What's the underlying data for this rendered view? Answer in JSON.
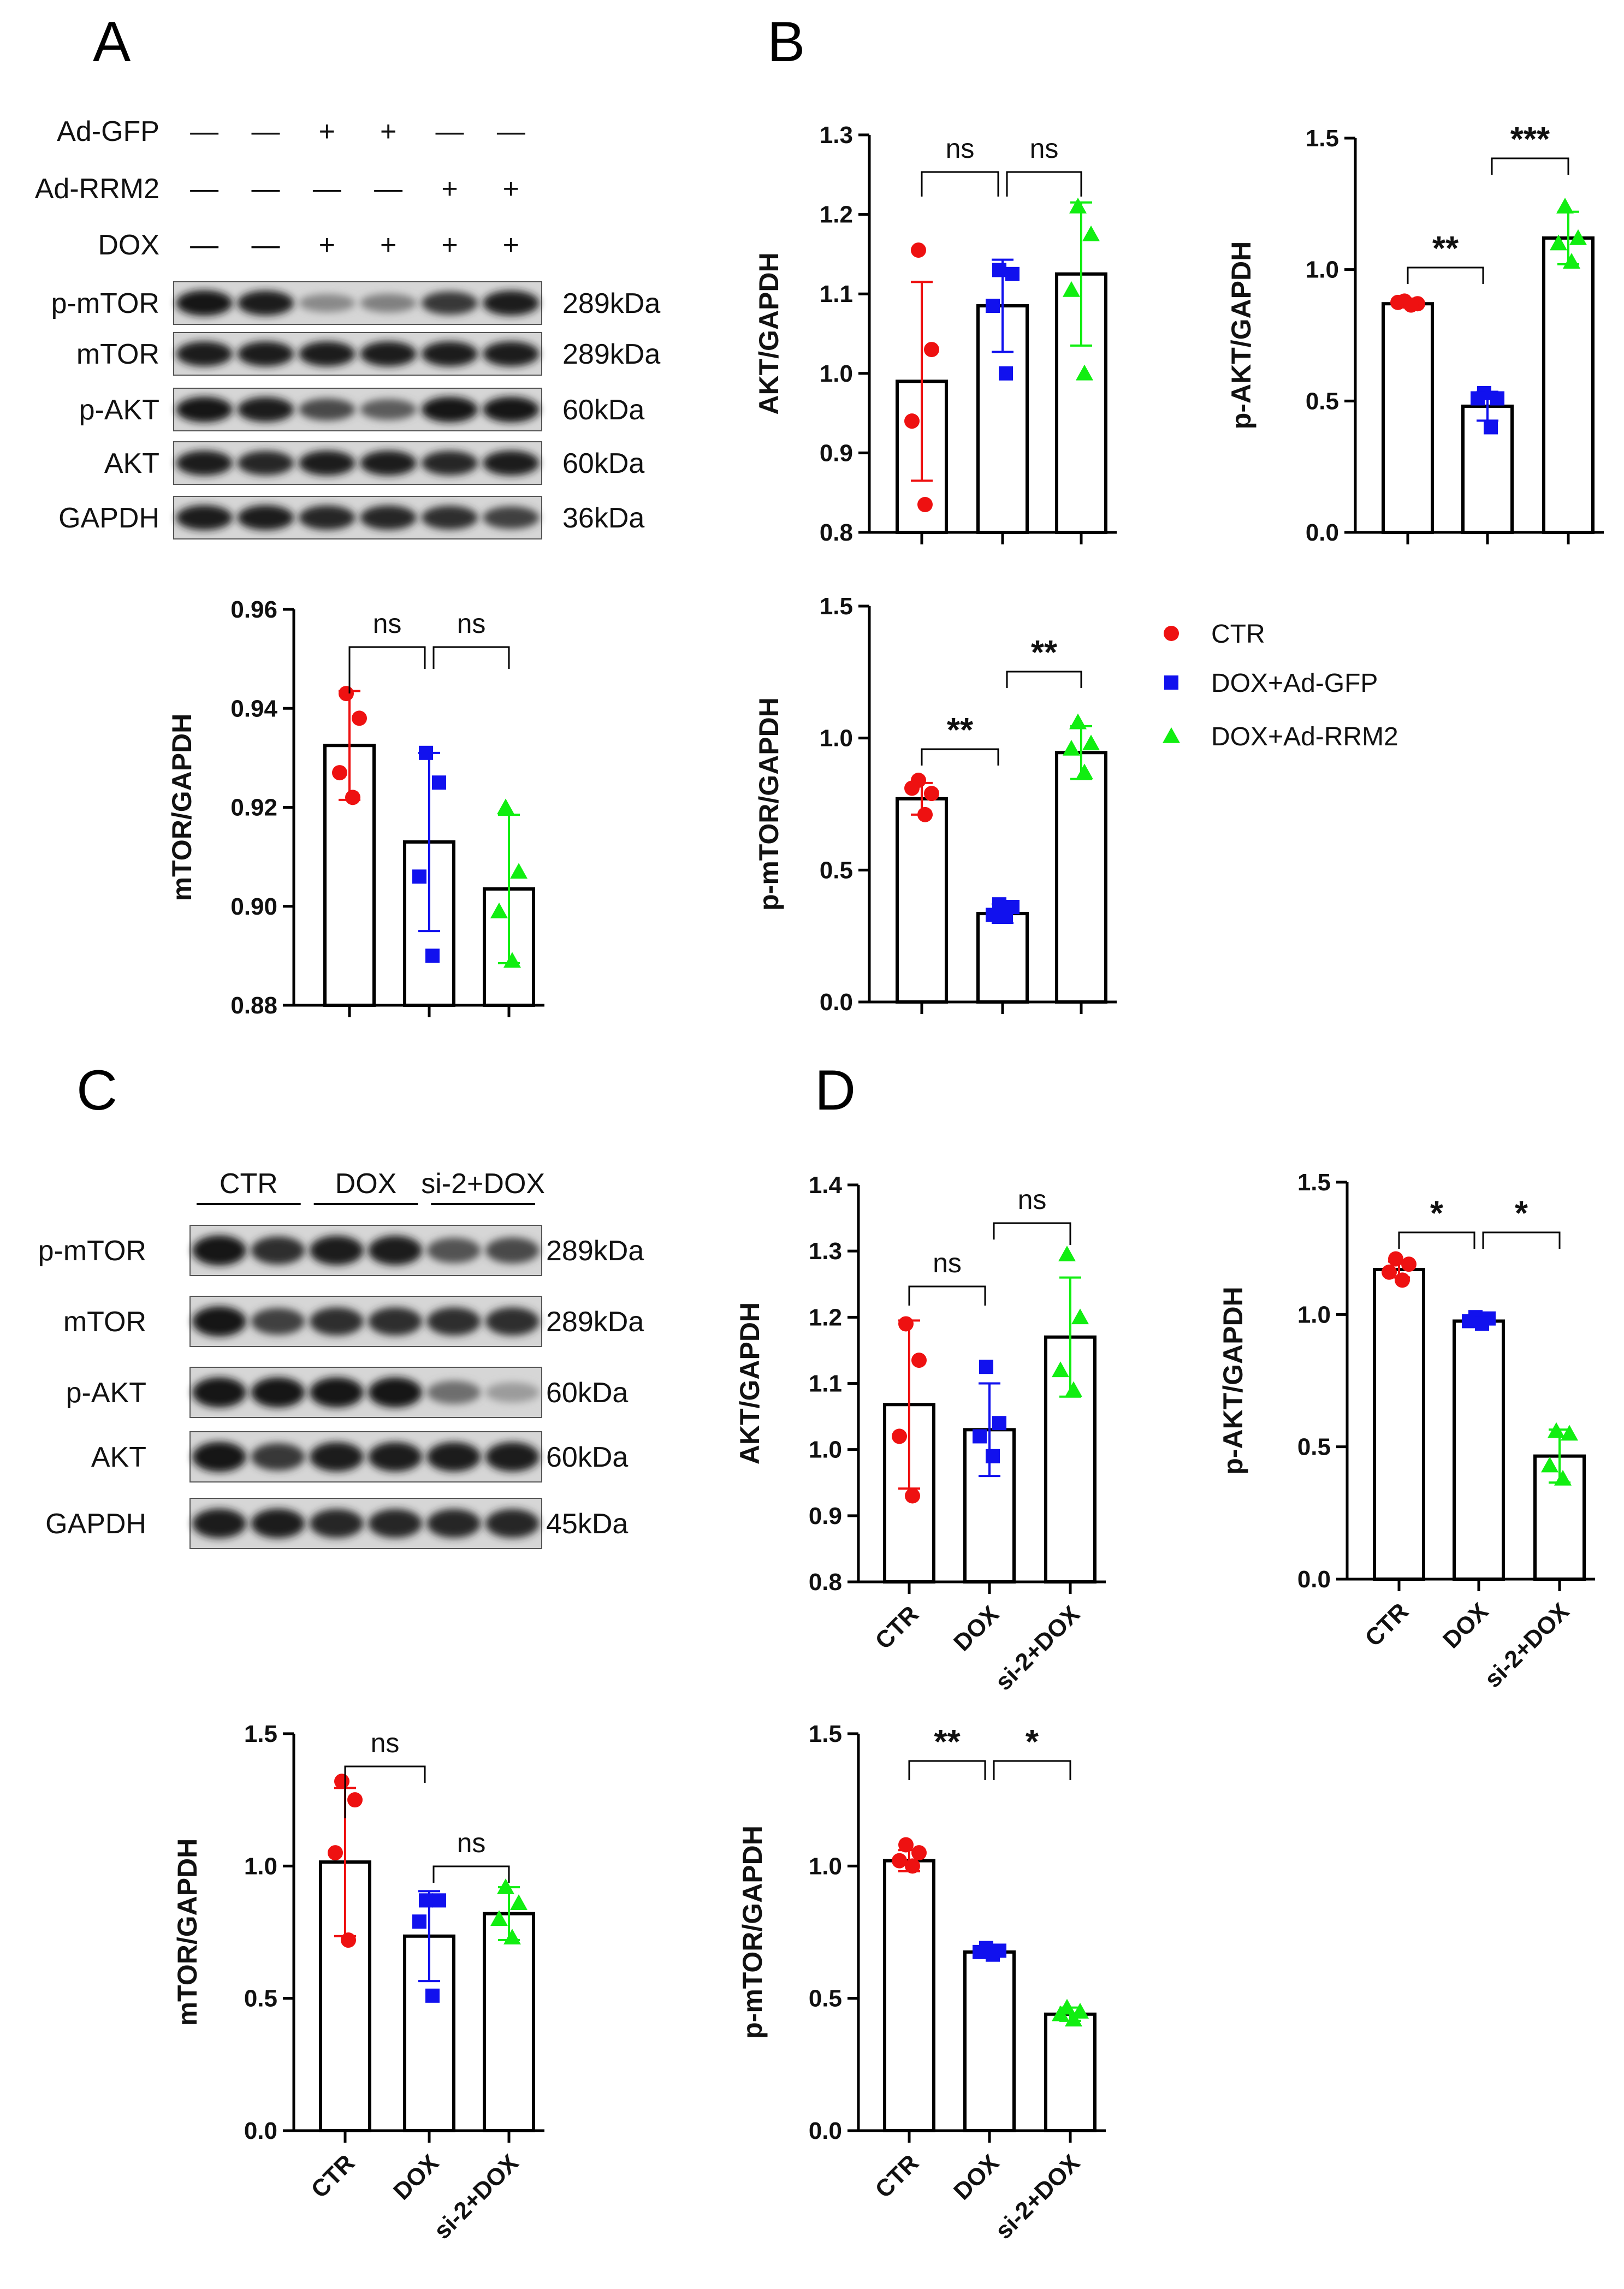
{
  "panels": {
    "A": "A",
    "B": "B",
    "C": "C",
    "D": "D"
  },
  "colors": {
    "ctr": "#ee1111",
    "gfp": "#1111ee",
    "rrm2": "#11ee11",
    "bar_fill": "#ffffff",
    "axis": "#000000"
  },
  "blot_A": {
    "treatments": [
      {
        "name": "Ad-GFP",
        "marks": [
          "—",
          "—",
          "+",
          "+",
          "—",
          "—"
        ]
      },
      {
        "name": "Ad-RRM2",
        "marks": [
          "—",
          "—",
          "—",
          "—",
          "+",
          "+"
        ]
      },
      {
        "name": "DOX",
        "marks": [
          "—",
          "—",
          "+",
          "+",
          "+",
          "+"
        ]
      }
    ],
    "rows": [
      {
        "label": "p-mTOR",
        "kda": "289kDa",
        "intensity": [
          1.0,
          0.95,
          0.35,
          0.4,
          0.8,
          0.95
        ]
      },
      {
        "label": "mTOR",
        "kda": "289kDa",
        "intensity": [
          0.95,
          0.95,
          0.95,
          0.95,
          0.95,
          0.95
        ]
      },
      {
        "label": "p-AKT",
        "kda": "60kDa",
        "intensity": [
          1.0,
          0.95,
          0.7,
          0.6,
          1.0,
          1.0
        ]
      },
      {
        "label": "AKT",
        "kda": "60kDa",
        "intensity": [
          0.95,
          0.9,
          0.95,
          0.95,
          0.9,
          0.95
        ]
      },
      {
        "label": "GAPDH",
        "kda": "36kDa",
        "intensity": [
          0.95,
          0.95,
          0.9,
          0.9,
          0.85,
          0.75
        ]
      }
    ]
  },
  "blot_C": {
    "groups": [
      "CTR",
      "DOX",
      "si-2+DOX"
    ],
    "rows": [
      {
        "label": "p-mTOR",
        "kda": "289kDa",
        "intensity": [
          1.0,
          0.85,
          0.95,
          0.95,
          0.65,
          0.7
        ]
      },
      {
        "label": "mTOR",
        "kda": "289kDa",
        "intensity": [
          1.0,
          0.75,
          0.85,
          0.85,
          0.85,
          0.85
        ]
      },
      {
        "label": "p-AKT",
        "kda": "60kDa",
        "intensity": [
          1.0,
          1.0,
          1.0,
          1.0,
          0.5,
          0.25
        ]
      },
      {
        "label": "AKT",
        "kda": "60kDa",
        "intensity": [
          1.0,
          0.8,
          0.95,
          0.95,
          0.95,
          0.95
        ]
      },
      {
        "label": "GAPDH",
        "kda": "45kDa",
        "intensity": [
          0.95,
          0.95,
          0.9,
          0.9,
          0.9,
          0.9
        ]
      }
    ]
  },
  "legend": [
    {
      "label": "CTR",
      "shape": "circle",
      "color": "#ee1111"
    },
    {
      "label": "DOX+Ad-GFP",
      "shape": "square",
      "color": "#1111ee"
    },
    {
      "label": "DOX+Ad-RRM2",
      "shape": "triangle",
      "color": "#11ee11"
    }
  ],
  "chart_data": [
    {
      "id": "A_mTOR",
      "type": "bar",
      "ylabel": "mTOR/GAPDH",
      "ylim": [
        0.88,
        0.96
      ],
      "yticks": [
        "0.88",
        "0.90",
        "0.92",
        "0.94",
        "0.96"
      ],
      "categories": [],
      "shapes": [
        "circle",
        "square",
        "triangle"
      ],
      "series": [
        {
          "name": "CTR",
          "mean": 0.9325,
          "sd": 0.011,
          "points": [
            0.943,
            0.938,
            0.927,
            0.922
          ]
        },
        {
          "name": "DOX+Ad-GFP",
          "mean": 0.913,
          "sd": 0.018,
          "points": [
            0.931,
            0.925,
            0.906,
            0.89
          ]
        },
        {
          "name": "DOX+Ad-RRM2",
          "mean": 0.9035,
          "sd": 0.015,
          "points": [
            0.92,
            0.907,
            0.899,
            0.889
          ]
        }
      ],
      "significance": [
        {
          "from": 0,
          "to": 1,
          "label": "ns"
        },
        {
          "from": 1,
          "to": 2,
          "label": "ns"
        }
      ]
    },
    {
      "id": "B_AKT",
      "type": "bar",
      "ylabel": "AKT/GAPDH",
      "ylim": [
        0.8,
        1.3
      ],
      "yticks": [
        "0.8",
        "0.9",
        "1.0",
        "1.1",
        "1.2",
        "1.3"
      ],
      "categories": [],
      "shapes": [
        "circle",
        "square",
        "triangle"
      ],
      "series": [
        {
          "name": "CTR",
          "mean": 0.99,
          "sd": 0.125,
          "points": [
            1.155,
            1.03,
            0.94,
            0.835
          ]
        },
        {
          "name": "DOX+Ad-GFP",
          "mean": 1.085,
          "sd": 0.058,
          "points": [
            1.13,
            1.125,
            1.085,
            1.0
          ]
        },
        {
          "name": "DOX+Ad-RRM2",
          "mean": 1.125,
          "sd": 0.09,
          "points": [
            1.21,
            1.175,
            1.105,
            1.0
          ]
        }
      ],
      "significance": [
        {
          "from": 0,
          "to": 1,
          "label": "ns"
        },
        {
          "from": 1,
          "to": 2,
          "label": "ns"
        }
      ]
    },
    {
      "id": "B_pAKT",
      "type": "bar",
      "ylabel": "p-AKT/GAPDH",
      "ylim": [
        0,
        1.5
      ],
      "yticks": [
        "0.0",
        "0.5",
        "1.0",
        "1.5"
      ],
      "categories": [],
      "shapes": [
        "circle",
        "square",
        "triangle"
      ],
      "series": [
        {
          "name": "CTR",
          "mean": 0.87,
          "sd": 0.01,
          "points": [
            0.88,
            0.87,
            0.875,
            0.865
          ]
        },
        {
          "name": "DOX+Ad-GFP",
          "mean": 0.48,
          "sd": 0.055,
          "points": [
            0.53,
            0.51,
            0.51,
            0.4
          ]
        },
        {
          "name": "DOX+Ad-RRM2",
          "mean": 1.12,
          "sd": 0.1,
          "points": [
            1.24,
            1.12,
            1.1,
            1.03
          ]
        }
      ],
      "significance": [
        {
          "from": 0,
          "to": 1,
          "label": "**"
        },
        {
          "from": 1,
          "to": 2,
          "label": "***"
        }
      ]
    },
    {
      "id": "B_pmTOR",
      "type": "bar",
      "ylabel": "p-mTOR/GAPDH",
      "ylim": [
        0,
        1.5
      ],
      "yticks": [
        "0.0",
        "0.5",
        "1.0",
        "1.5"
      ],
      "categories": [],
      "shapes": [
        "circle",
        "square",
        "triangle"
      ],
      "series": [
        {
          "name": "CTR",
          "mean": 0.77,
          "sd": 0.06,
          "points": [
            0.84,
            0.79,
            0.81,
            0.71
          ]
        },
        {
          "name": "DOX+Ad-GFP",
          "mean": 0.335,
          "sd": 0.035,
          "points": [
            0.37,
            0.36,
            0.33,
            0.33
          ]
        },
        {
          "name": "DOX+Ad-RRM2",
          "mean": 0.945,
          "sd": 0.1,
          "points": [
            1.06,
            0.98,
            0.96,
            0.87
          ]
        }
      ],
      "significance": [
        {
          "from": 0,
          "to": 1,
          "label": "**"
        },
        {
          "from": 1,
          "to": 2,
          "label": "**"
        }
      ]
    },
    {
      "id": "C_mTOR",
      "type": "bar",
      "ylabel": "mTOR/GAPDH",
      "ylim": [
        0,
        1.5
      ],
      "yticks": [
        "0.0",
        "0.5",
        "1.0",
        "1.5"
      ],
      "categories": [
        "CTR",
        "DOX",
        "si-2+DOX"
      ],
      "shapes": [
        "circle",
        "square",
        "triangle"
      ],
      "series": [
        {
          "name": "CTR",
          "mean": 1.015,
          "sd": 0.28,
          "points": [
            1.32,
            1.25,
            1.05,
            0.72
          ]
        },
        {
          "name": "DOX",
          "mean": 0.735,
          "sd": 0.17,
          "points": [
            0.87,
            0.87,
            0.79,
            0.51
          ]
        },
        {
          "name": "si-2+DOX",
          "mean": 0.82,
          "sd": 0.1,
          "points": [
            0.92,
            0.86,
            0.8,
            0.73
          ]
        }
      ],
      "significance": [
        {
          "from": 0,
          "to": 1,
          "label": "ns"
        },
        {
          "from": 1,
          "to": 2,
          "label": "ns"
        }
      ]
    },
    {
      "id": "D_AKT",
      "type": "bar",
      "ylabel": "AKT/GAPDH",
      "ylim": [
        0.8,
        1.4
      ],
      "yticks": [
        "0.8",
        "0.9",
        "1.0",
        "1.1",
        "1.2",
        "1.3",
        "1.4"
      ],
      "categories": [
        "CTR",
        "DOX",
        "si-2+DOX"
      ],
      "shapes": [
        "circle",
        "square",
        "triangle"
      ],
      "series": [
        {
          "name": "CTR",
          "mean": 1.068,
          "sd": 0.127,
          "points": [
            1.19,
            1.135,
            1.02,
            0.93
          ]
        },
        {
          "name": "DOX",
          "mean": 1.03,
          "sd": 0.07,
          "points": [
            1.125,
            1.04,
            1.02,
            0.99
          ]
        },
        {
          "name": "si-2+DOX",
          "mean": 1.17,
          "sd": 0.09,
          "points": [
            1.295,
            1.2,
            1.12,
            1.09
          ]
        }
      ],
      "significance": [
        {
          "from": 0,
          "to": 1,
          "label": "ns"
        },
        {
          "from": 1,
          "to": 2,
          "label": "ns"
        }
      ]
    },
    {
      "id": "D_pAKT",
      "type": "bar",
      "ylabel": "p-AKT/GAPDH",
      "ylim": [
        0,
        1.5
      ],
      "yticks": [
        "0.0",
        "0.5",
        "1.0",
        "1.5"
      ],
      "categories": [
        "CTR",
        "DOX",
        "si-2+DOX"
      ],
      "shapes": [
        "circle",
        "square",
        "triangle"
      ],
      "series": [
        {
          "name": "CTR",
          "mean": 1.17,
          "sd": 0.03,
          "points": [
            1.21,
            1.19,
            1.16,
            1.13
          ]
        },
        {
          "name": "DOX",
          "mean": 0.975,
          "sd": 0.012,
          "points": [
            0.99,
            0.985,
            0.975,
            0.965
          ]
        },
        {
          "name": "si-2+DOX",
          "mean": 0.465,
          "sd": 0.1,
          "points": [
            0.56,
            0.55,
            0.43,
            0.38
          ]
        }
      ],
      "significance": [
        {
          "from": 0,
          "to": 1,
          "label": "*"
        },
        {
          "from": 1,
          "to": 2,
          "label": "*"
        }
      ]
    },
    {
      "id": "D_pmTOR",
      "type": "bar",
      "ylabel": "p-mTOR/GAPDH",
      "ylim": [
        0,
        1.5
      ],
      "yticks": [
        "0.0",
        "0.5",
        "1.0",
        "1.5"
      ],
      "categories": [
        "CTR",
        "DOX",
        "si-2+DOX"
      ],
      "shapes": [
        "circle",
        "square",
        "triangle"
      ],
      "series": [
        {
          "name": "CTR",
          "mean": 1.02,
          "sd": 0.04,
          "points": [
            1.08,
            1.05,
            1.02,
            1.0
          ]
        },
        {
          "name": "DOX",
          "mean": 0.675,
          "sd": 0.015,
          "points": [
            0.69,
            0.68,
            0.675,
            0.665
          ]
        },
        {
          "name": "si-2+DOX",
          "mean": 0.44,
          "sd": 0.025,
          "points": [
            0.465,
            0.45,
            0.44,
            0.42
          ]
        }
      ],
      "significance": [
        {
          "from": 0,
          "to": 1,
          "label": "**"
        },
        {
          "from": 1,
          "to": 2,
          "label": "*"
        }
      ]
    }
  ]
}
